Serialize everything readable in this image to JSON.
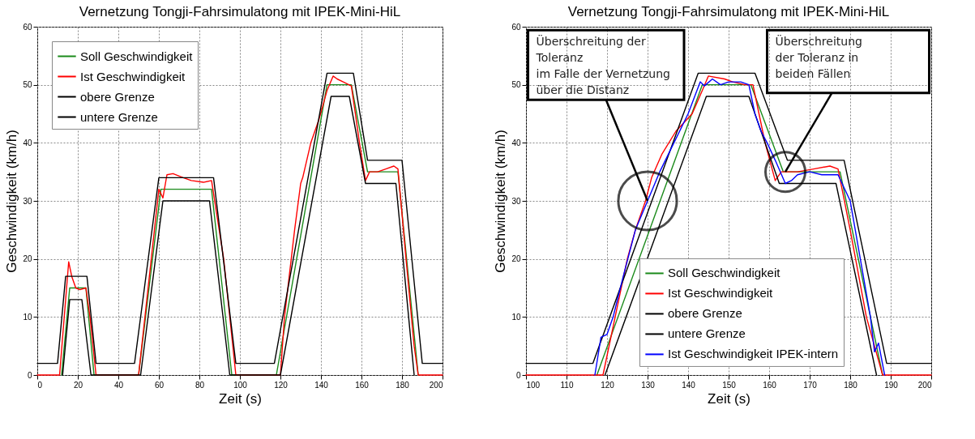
{
  "chart_data": [
    {
      "type": "line",
      "title": "Vernetzung Tongji-Fahrsimulatong mit IPEK-Mini-HiL",
      "xlabel": "Zeit (s)",
      "ylabel": "Geschwindigkeit (km/h)",
      "xlim": [
        0,
        200
      ],
      "ylim": [
        0,
        60
      ],
      "xticks": [
        0,
        20,
        40,
        60,
        80,
        100,
        120,
        140,
        160,
        180,
        200
      ],
      "yticks": [
        0,
        10,
        20,
        30,
        40,
        50,
        60
      ],
      "grid": true,
      "legend": "top left",
      "series": [
        {
          "name": "Soll Geschwindigkeit",
          "color": "#1a8a1a",
          "x": [
            12,
            16,
            24,
            28,
            50,
            61,
            86,
            96,
            118,
            143,
            155,
            163,
            178,
            188
          ],
          "values": [
            0,
            15,
            15,
            0,
            0,
            32,
            32,
            0,
            0,
            50,
            50,
            35,
            35,
            0
          ]
        },
        {
          "name": "Ist Geschwindigkeit",
          "color": "#ff0000",
          "x": [
            0,
            11,
            15.5,
            17,
            19,
            21,
            24,
            26,
            29,
            50,
            60,
            62,
            64,
            67,
            72,
            76,
            82,
            86,
            92,
            98,
            120,
            122,
            127,
            130,
            131,
            135,
            139,
            143,
            146,
            148,
            151,
            155,
            157,
            159,
            162,
            164,
            168,
            172,
            176,
            178,
            182,
            186,
            188,
            200
          ],
          "values": [
            0,
            0,
            19.5,
            17,
            15,
            14.7,
            15,
            10,
            0,
            0,
            32,
            30.5,
            34.5,
            34.7,
            34,
            33.5,
            33.2,
            33.5,
            20,
            0,
            0,
            10,
            25,
            33,
            34,
            40,
            44,
            49,
            51.5,
            51,
            50.5,
            49.8,
            45,
            40,
            33.5,
            35,
            35,
            35.5,
            36,
            35.5,
            20,
            5,
            0,
            0
          ]
        },
        {
          "name": "obere Grenze",
          "color": "#000000",
          "x": [
            0,
            10,
            14,
            24.5,
            29,
            48,
            60,
            87,
            98,
            117,
            143,
            156,
            163,
            180,
            190,
            200
          ],
          "values": [
            2,
            2,
            17,
            17,
            2,
            2,
            34,
            34,
            2,
            2,
            52,
            52,
            37,
            37,
            2,
            2
          ]
        },
        {
          "name": "untere Grenze",
          "color": "#000000",
          "x": [
            12.5,
            16,
            22,
            26.5,
            51,
            62,
            85,
            95,
            120,
            145,
            154,
            162,
            177,
            186
          ],
          "values": [
            0,
            13,
            13,
            0,
            0,
            30,
            30,
            0,
            0,
            48,
            48,
            33,
            33,
            0
          ]
        }
      ]
    },
    {
      "type": "line",
      "title": "Vernetzung Tongji-Fahrsimulatong mit IPEK-Mini-HiL",
      "xlabel": "Zeit (s)",
      "ylabel": "Geschwindigkeit (km/h)",
      "xlim": [
        100,
        200
      ],
      "ylim": [
        0,
        60
      ],
      "xticks": [
        100,
        110,
        120,
        130,
        140,
        150,
        160,
        170,
        180,
        190,
        200
      ],
      "yticks": [
        0,
        10,
        20,
        30,
        40,
        50,
        60
      ],
      "grid": true,
      "legend": "bottom",
      "annotations": [
        {
          "text": "Überschreitung der\nToleranz\nim Falle der Vernetzung\nüber die Distanz",
          "x": 130,
          "y": 30
        },
        {
          "text": "Überschreitung\nder Toleranz in\nbeiden Fällen",
          "x": 164,
          "y": 35
        }
      ],
      "series": [
        {
          "name": "Soll Geschwindigkeit",
          "color": "#1a8a1a",
          "x": [
            117.5,
            143.5,
            155.5,
            163.5,
            177.5,
            188
          ],
          "values": [
            0,
            50,
            50,
            35,
            35,
            0
          ]
        },
        {
          "name": "Ist Geschwindigkeit",
          "color": "#ff0000",
          "x": [
            100,
            119,
            122,
            125,
            127,
            129.5,
            131,
            133.5,
            137,
            141,
            143.5,
            145,
            149,
            151,
            154,
            156,
            157.5,
            159,
            161.5,
            163,
            167,
            171,
            175,
            177,
            180,
            184,
            188,
            200
          ],
          "values": [
            0,
            0,
            10,
            20,
            25,
            30,
            34,
            38,
            42,
            45,
            49,
            51.5,
            51,
            50.5,
            50,
            50,
            45,
            40,
            33.5,
            35,
            35,
            35.5,
            36,
            35.5,
            25,
            10,
            0,
            0
          ]
        },
        {
          "name": "obere Grenze",
          "color": "#000000",
          "x": [
            100,
            116.5,
            142.5,
            156.5,
            164.5,
            178.5,
            189,
            200
          ],
          "values": [
            2,
            2,
            52,
            52,
            37,
            37,
            2,
            2
          ]
        },
        {
          "name": "untere Grenze",
          "color": "#000000",
          "x": [
            119.5,
            144.5,
            155,
            162.5,
            176.5,
            186.5
          ],
          "values": [
            0,
            48,
            48,
            33,
            33,
            0
          ]
        },
        {
          "name": "Ist Geschwindigkeit IPEK-intern",
          "color": "#0000ff",
          "x": [
            117,
            118.5,
            120,
            121.5,
            124,
            127,
            130,
            133,
            136.5,
            140,
            143,
            144,
            146,
            148,
            150,
            153,
            155,
            156.5,
            158,
            159.5,
            161.5,
            164,
            165.5,
            167,
            170,
            173,
            177,
            180,
            182.5,
            185,
            186,
            187,
            188.5
          ],
          "values": [
            0,
            6.5,
            7,
            10,
            17,
            25,
            30,
            35,
            40,
            45,
            50.5,
            49.8,
            51,
            50,
            50.5,
            50.5,
            50,
            45,
            42,
            40,
            37,
            33,
            33.5,
            34.5,
            35,
            34.5,
            34.5,
            30,
            20,
            10,
            4,
            5.5,
            0
          ]
        }
      ]
    }
  ]
}
